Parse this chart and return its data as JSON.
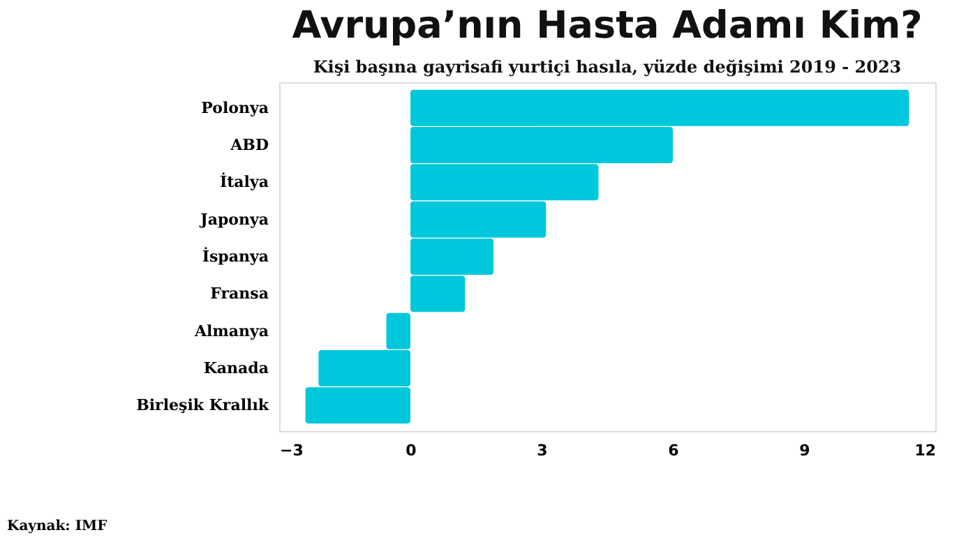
{
  "chart_data": {
    "type": "bar",
    "orientation": "horizontal",
    "title": "Avrupa’nın Hasta Adamı Kim?",
    "subtitle": "Kişi başına gayrisafi yurtiçi hasıla, yüzde değişimi 2019 - 2023",
    "categories": [
      "Polonya",
      "ABD",
      "İtalya",
      "Japonya",
      "İspanya",
      "Fransa",
      "Almanya",
      "Kanada",
      "Birleşik Krallık"
    ],
    "values": [
      11.4,
      6.0,
      4.3,
      3.1,
      1.9,
      1.25,
      -0.55,
      -2.1,
      -2.4
    ],
    "color": "#00c8dc",
    "xlim": [
      -3,
      12
    ],
    "xticks": [
      -3,
      0,
      3,
      6,
      9,
      12
    ],
    "grid": false,
    "annotations": [
      "Kaynak: IMF"
    ]
  }
}
